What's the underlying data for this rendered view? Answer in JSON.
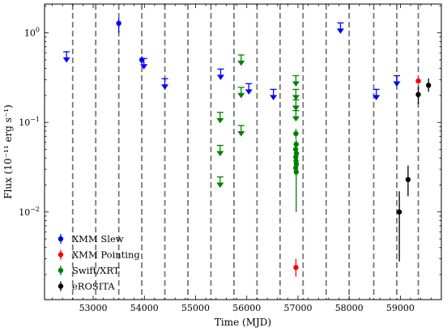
{
  "chart_data": {
    "type": "scatter",
    "xlabel": "Time (MJD)",
    "ylabel": "Flux (10⁻¹¹ erg s⁻¹)",
    "xlim": [
      52050,
      59800
    ],
    "ylim": [
      0.00105,
      2.1
    ],
    "yscale": "log",
    "grid": false,
    "legend_position": "bottom-left",
    "x_ticks": [
      53000,
      54000,
      55000,
      56000,
      57000,
      58000,
      59000
    ],
    "y_ticks": [
      {
        "value": 0.01,
        "base": "10",
        "exp": "−2"
      },
      {
        "value": 0.1,
        "base": "10",
        "exp": "−1"
      },
      {
        "value": 1,
        "base": "10",
        "exp": "0"
      }
    ],
    "vlines": [
      52600,
      53050,
      53500,
      53950,
      54400,
      54850,
      55300,
      55750,
      56200,
      56650,
      57100,
      57550,
      58000,
      58480,
      58930,
      59350
    ],
    "series": [
      {
        "name": "XMM Slew",
        "color": "#0000ff",
        "upper_limits": [
          {
            "x": 52480,
            "y": 0.5
          },
          {
            "x": 53990,
            "y": 0.42
          },
          {
            "x": 54400,
            "y": 0.25
          },
          {
            "x": 55490,
            "y": 0.32
          },
          {
            "x": 56040,
            "y": 0.22
          },
          {
            "x": 56520,
            "y": 0.19
          },
          {
            "x": 57830,
            "y": 1.05
          },
          {
            "x": 58530,
            "y": 0.19
          },
          {
            "x": 58930,
            "y": 0.27
          }
        ],
        "points": [
          {
            "x": 53500,
            "y": 1.28,
            "yerr_low": 1.0,
            "yerr_high": 1.45
          },
          {
            "x": 53950,
            "y": 0.5,
            "yerr_low": 0.45,
            "yerr_high": 0.55
          }
        ]
      },
      {
        "name": "XMM Pointing",
        "color": "#ff0000",
        "points": [
          {
            "x": 56960,
            "y": 0.0024,
            "yerr_low": 0.0019,
            "yerr_high": 0.003
          },
          {
            "x": 59350,
            "y": 0.29,
            "yerr_low": 0.28,
            "yerr_high": 0.3
          }
        ]
      },
      {
        "name": "Swift/XRT",
        "color": "#008000",
        "upper_limits": [
          {
            "x": 55480,
            "y": 0.105
          },
          {
            "x": 55480,
            "y": 0.045
          },
          {
            "x": 55480,
            "y": 0.02
          },
          {
            "x": 55890,
            "y": 0.46
          },
          {
            "x": 55890,
            "y": 0.2
          },
          {
            "x": 55890,
            "y": 0.075
          },
          {
            "x": 56960,
            "y": 0.27
          },
          {
            "x": 56960,
            "y": 0.19
          },
          {
            "x": 56960,
            "y": 0.145
          },
          {
            "x": 56960,
            "y": 0.11
          }
        ],
        "points": [
          {
            "x": 56960,
            "y": 0.075,
            "yerr_low": 0.065,
            "yerr_high": 0.085
          },
          {
            "x": 56965,
            "y": 0.057,
            "yerr_low": 0.05,
            "yerr_high": 0.064
          },
          {
            "x": 56955,
            "y": 0.05,
            "yerr_low": 0.044,
            "yerr_high": 0.056
          },
          {
            "x": 56970,
            "y": 0.045,
            "yerr_low": 0.039,
            "yerr_high": 0.051
          },
          {
            "x": 56958,
            "y": 0.041,
            "yerr_low": 0.035,
            "yerr_high": 0.047
          },
          {
            "x": 56962,
            "y": 0.037,
            "yerr_low": 0.032,
            "yerr_high": 0.043
          },
          {
            "x": 56968,
            "y": 0.034,
            "yerr_low": 0.029,
            "yerr_high": 0.04
          },
          {
            "x": 56956,
            "y": 0.031,
            "yerr_low": 0.026,
            "yerr_high": 0.037
          },
          {
            "x": 56966,
            "y": 0.028,
            "yerr_low": 0.01,
            "yerr_high": 0.05
          }
        ]
      },
      {
        "name": "eROSITA",
        "color": "#000000",
        "points": [
          {
            "x": 58980,
            "y": 0.01,
            "yerr_low": 0.0028,
            "yerr_high": 0.017
          },
          {
            "x": 59150,
            "y": 0.023,
            "yerr_low": 0.015,
            "yerr_high": 0.033
          },
          {
            "x": 59350,
            "y": 0.205,
            "yerr_low": 0.16,
            "yerr_high": 0.25
          },
          {
            "x": 59550,
            "y": 0.26,
            "yerr_low": 0.22,
            "yerr_high": 0.31
          }
        ]
      }
    ]
  }
}
